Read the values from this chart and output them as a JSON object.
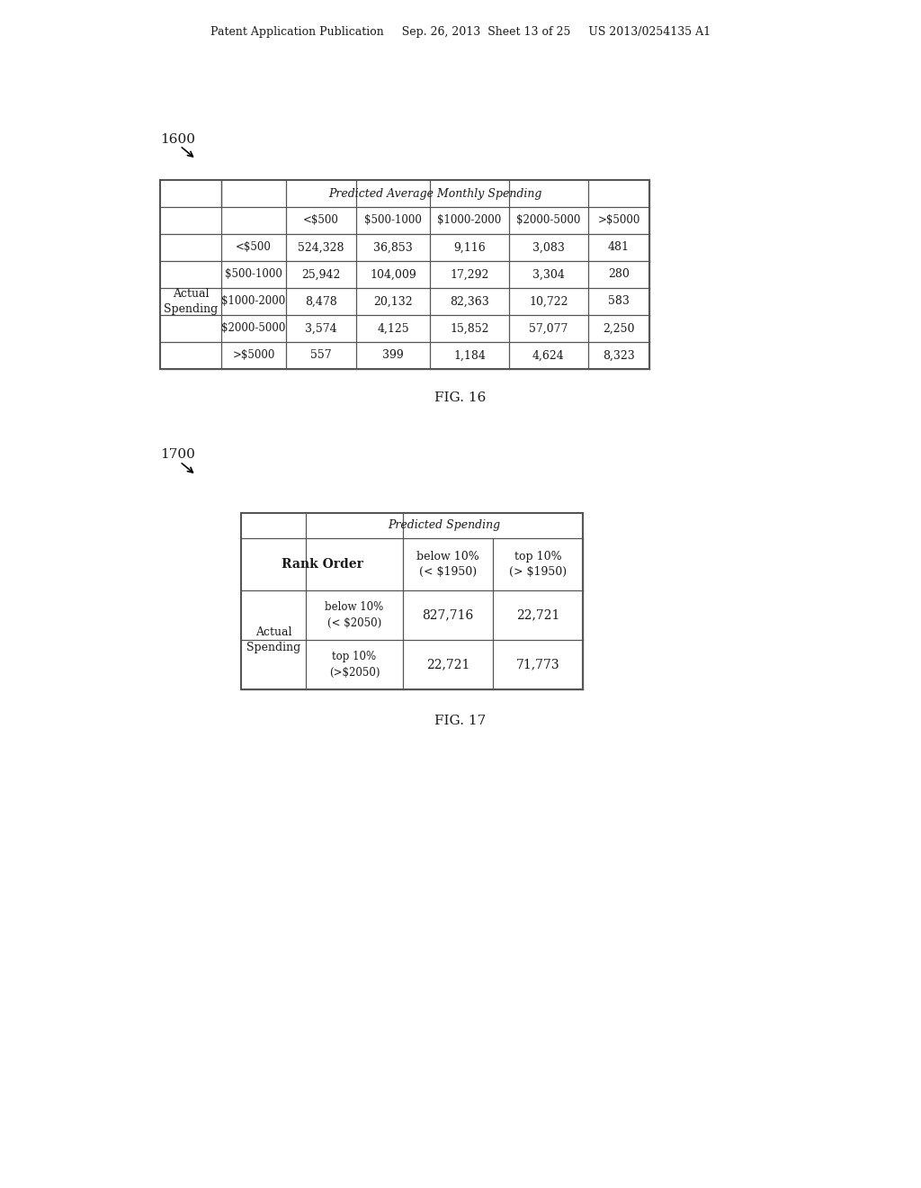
{
  "background_color": "#ffffff",
  "header_text": "Patent Application Publication     Sep. 26, 2013  Sheet 13 of 25     US 2013/0254135 A1",
  "fig16_label": "1600",
  "fig16_caption": "FIG. 16",
  "fig17_label": "1700",
  "fig17_caption": "FIG. 17",
  "table1": {
    "title": "Predicted Average Monthly Spending",
    "col_headers": [
      "<$500",
      "$500-1000",
      "$1000-2000",
      "$2000-5000",
      ">$5000"
    ],
    "row_labels": [
      "<$500",
      "$500-1000",
      "$1000-2000",
      "$2000-5000",
      ">$5000"
    ],
    "data": [
      [
        "524,328",
        "36,853",
        "9,116",
        "3,083",
        "481"
      ],
      [
        "25,942",
        "104,009",
        "17,292",
        "3,304",
        "280"
      ],
      [
        "8,478",
        "20,132",
        "82,363",
        "10,722",
        "583"
      ],
      [
        "3,574",
        "4,125",
        "15,852",
        "57,077",
        "2,250"
      ],
      [
        "557",
        "399",
        "1,184",
        "4,624",
        "8,323"
      ]
    ]
  },
  "table2": {
    "title": "Predicted Spending",
    "col1_header_line1": "below 10%",
    "col1_header_line2": "(< $1950)",
    "col2_header_line1": "top 10%",
    "col2_header_line2": "(> $1950)",
    "row_header_label": "Rank Order",
    "row1_label_line1": "below 10%",
    "row1_label_line2": "(< $2050)",
    "row2_label_line1": "top 10%",
    "row2_label_line2": "(>$2050)",
    "data": [
      [
        "827,716",
        "22,721"
      ],
      [
        "22,721",
        "71,773"
      ]
    ]
  }
}
